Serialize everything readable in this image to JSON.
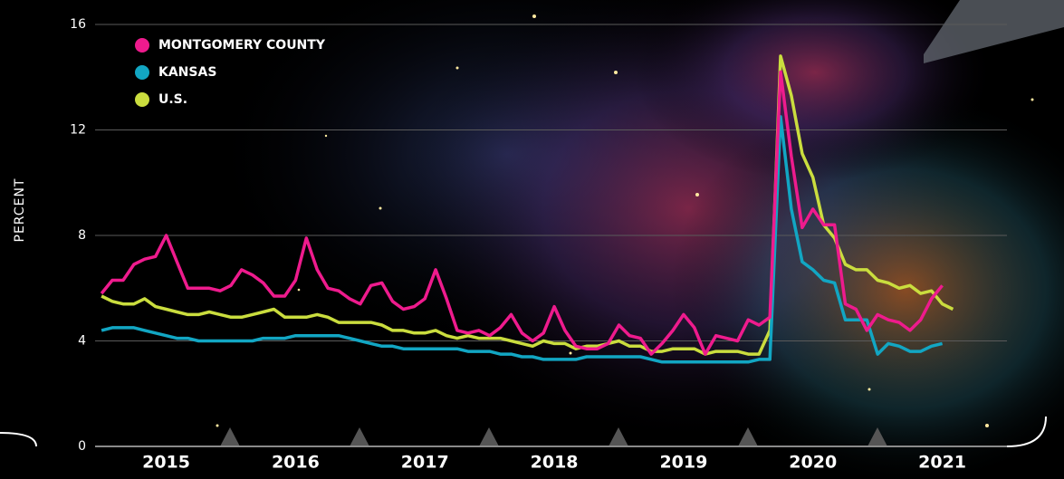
{
  "chart_data": {
    "type": "line",
    "y_label": "PERCENT",
    "x": [
      2015,
      2015.083,
      2015.167,
      2015.25,
      2015.333,
      2015.417,
      2015.5,
      2015.583,
      2015.667,
      2015.75,
      2015.833,
      2015.917,
      2016,
      2016.083,
      2016.167,
      2016.25,
      2016.333,
      2016.417,
      2016.5,
      2016.583,
      2016.667,
      2016.75,
      2016.833,
      2016.917,
      2017,
      2017.083,
      2017.167,
      2017.25,
      2017.333,
      2017.417,
      2017.5,
      2017.583,
      2017.667,
      2017.75,
      2017.833,
      2017.917,
      2018,
      2018.083,
      2018.167,
      2018.25,
      2018.333,
      2018.417,
      2018.5,
      2018.583,
      2018.667,
      2018.75,
      2018.833,
      2018.917,
      2019,
      2019.083,
      2019.167,
      2019.25,
      2019.333,
      2019.417,
      2019.5,
      2019.583,
      2019.667,
      2019.75,
      2019.833,
      2019.917,
      2020,
      2020.083,
      2020.167,
      2020.25,
      2020.333,
      2020.417,
      2020.5,
      2020.583,
      2020.667,
      2020.75,
      2020.833,
      2020.917,
      2021,
      2021.083,
      2021.167,
      2021.25,
      2021.333,
      2021.417,
      2021.5,
      2021.583
    ],
    "series": [
      {
        "name": "MONTGOMERY COUNTY",
        "color": "#ee1b8d",
        "values": [
          5.8,
          6.3,
          6.3,
          6.9,
          7.1,
          7.2,
          8.0,
          7.0,
          6.0,
          6.0,
          6.0,
          5.9,
          6.1,
          6.7,
          6.5,
          6.2,
          5.7,
          5.7,
          6.3,
          7.9,
          6.7,
          6.0,
          5.9,
          5.6,
          5.4,
          6.1,
          6.2,
          5.5,
          5.2,
          5.3,
          5.6,
          6.7,
          5.6,
          4.4,
          4.3,
          4.4,
          4.2,
          4.5,
          5.0,
          4.3,
          4.0,
          4.3,
          5.3,
          4.4,
          3.8,
          3.7,
          3.7,
          3.9,
          4.6,
          4.2,
          4.1,
          3.5,
          3.9,
          4.4,
          5.0,
          4.5,
          3.5,
          4.2,
          4.1,
          4.0,
          4.8,
          4.6,
          4.9,
          14.2,
          11.0,
          8.3,
          9.0,
          8.4,
          8.4,
          5.4,
          5.2,
          4.4,
          5.0,
          4.8,
          4.7,
          4.4,
          4.8,
          5.6,
          6.1,
          null
        ]
      },
      {
        "name": "KANSAS",
        "color": "#12a6c3",
        "values": [
          4.4,
          4.5,
          4.5,
          4.5,
          4.4,
          4.3,
          4.2,
          4.1,
          4.1,
          4.0,
          4.0,
          4.0,
          4.0,
          4.0,
          4.0,
          4.1,
          4.1,
          4.1,
          4.2,
          4.2,
          4.2,
          4.2,
          4.2,
          4.1,
          4.0,
          3.9,
          3.8,
          3.8,
          3.7,
          3.7,
          3.7,
          3.7,
          3.7,
          3.7,
          3.6,
          3.6,
          3.6,
          3.5,
          3.5,
          3.4,
          3.4,
          3.3,
          3.3,
          3.3,
          3.3,
          3.4,
          3.4,
          3.4,
          3.4,
          3.4,
          3.4,
          3.3,
          3.2,
          3.2,
          3.2,
          3.2,
          3.2,
          3.2,
          3.2,
          3.2,
          3.2,
          3.3,
          3.3,
          12.5,
          9.0,
          7.0,
          6.7,
          6.3,
          6.2,
          4.8,
          4.8,
          4.8,
          3.5,
          3.9,
          3.8,
          3.6,
          3.6,
          3.8,
          3.9,
          null
        ]
      },
      {
        "name": "U.S.",
        "color": "#cadd3e",
        "values": [
          5.7,
          5.5,
          5.4,
          5.4,
          5.6,
          5.3,
          5.2,
          5.1,
          5.0,
          5.0,
          5.1,
          5.0,
          4.9,
          4.9,
          5.0,
          5.1,
          5.2,
          4.9,
          4.9,
          4.9,
          5.0,
          4.9,
          4.7,
          4.7,
          4.7,
          4.7,
          4.6,
          4.4,
          4.4,
          4.3,
          4.3,
          4.4,
          4.2,
          4.1,
          4.2,
          4.1,
          4.1,
          4.1,
          4.0,
          3.9,
          3.8,
          4.0,
          3.9,
          3.9,
          3.7,
          3.8,
          3.8,
          3.9,
          4.0,
          3.8,
          3.8,
          3.6,
          3.6,
          3.7,
          3.7,
          3.7,
          3.5,
          3.6,
          3.6,
          3.6,
          3.5,
          3.5,
          4.4,
          14.8,
          13.3,
          11.1,
          10.2,
          8.4,
          7.9,
          6.9,
          6.7,
          6.7,
          6.3,
          6.2,
          6.0,
          6.1,
          5.8,
          5.9,
          5.4,
          5.2
        ]
      }
    ],
    "xlim": [
      2014.95,
      2022
    ],
    "xticks": [
      {
        "value": 2015.5,
        "label": "2015"
      },
      {
        "value": 2016.5,
        "label": "2016"
      },
      {
        "value": 2017.5,
        "label": "2017"
      },
      {
        "value": 2018.5,
        "label": "2018"
      },
      {
        "value": 2019.5,
        "label": "2019"
      },
      {
        "value": 2020.5,
        "label": "2020"
      },
      {
        "value": 2021.5,
        "label": "2021"
      }
    ],
    "ylim": [
      0,
      16
    ],
    "yticks": [
      0,
      4,
      8,
      12,
      16
    ],
    "grid": true
  }
}
